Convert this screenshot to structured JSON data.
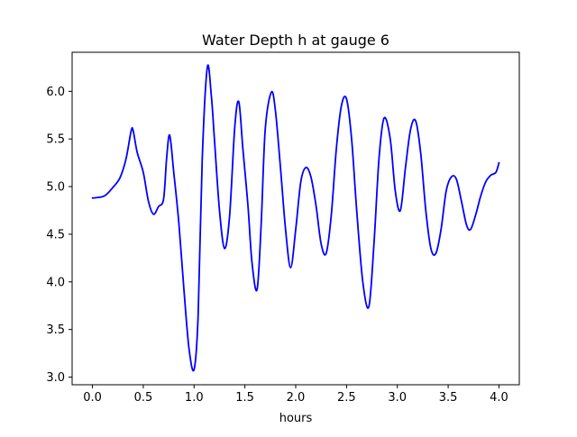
{
  "chart_data": {
    "type": "line",
    "title": "Water Depth h at gauge 6",
    "xlabel": "hours",
    "ylabel": "",
    "xlim": [
      -0.2,
      4.2
    ],
    "ylim": [
      2.92,
      6.41
    ],
    "xticks": [
      0.0,
      0.5,
      1.0,
      1.5,
      2.0,
      2.5,
      3.0,
      3.5,
      4.0
    ],
    "xtick_labels": [
      "0.0",
      "0.5",
      "1.0",
      "1.5",
      "2.0",
      "2.5",
      "3.0",
      "3.5",
      "4.0"
    ],
    "yticks": [
      3.0,
      3.5,
      4.0,
      4.5,
      5.0,
      5.5,
      6.0
    ],
    "ytick_labels": [
      "3.0",
      "3.5",
      "4.0",
      "4.5",
      "5.0",
      "5.5",
      "6.0"
    ],
    "grid": false,
    "legend": "none",
    "series": [
      {
        "name": "",
        "color": "#0000ff",
        "points": [
          [
            0.0,
            4.88
          ],
          [
            0.08,
            4.89
          ],
          [
            0.13,
            4.91
          ],
          [
            0.2,
            4.99
          ],
          [
            0.27,
            5.09
          ],
          [
            0.33,
            5.29
          ],
          [
            0.38,
            5.58
          ],
          [
            0.4,
            5.59
          ],
          [
            0.44,
            5.36
          ],
          [
            0.5,
            5.15
          ],
          [
            0.55,
            4.85
          ],
          [
            0.6,
            4.71
          ],
          [
            0.65,
            4.79
          ],
          [
            0.7,
            4.87
          ],
          [
            0.73,
            5.3
          ],
          [
            0.76,
            5.54
          ],
          [
            0.8,
            5.15
          ],
          [
            0.85,
            4.62
          ],
          [
            0.9,
            3.92
          ],
          [
            0.95,
            3.3
          ],
          [
            1.0,
            3.08
          ],
          [
            1.04,
            3.65
          ],
          [
            1.08,
            5.28
          ],
          [
            1.13,
            6.25
          ],
          [
            1.17,
            5.95
          ],
          [
            1.2,
            5.5
          ],
          [
            1.25,
            4.75
          ],
          [
            1.3,
            4.35
          ],
          [
            1.35,
            4.7
          ],
          [
            1.4,
            5.62
          ],
          [
            1.44,
            5.89
          ],
          [
            1.48,
            5.4
          ],
          [
            1.53,
            4.8
          ],
          [
            1.57,
            4.2
          ],
          [
            1.62,
            3.92
          ],
          [
            1.66,
            4.6
          ],
          [
            1.7,
            5.6
          ],
          [
            1.76,
            5.99
          ],
          [
            1.8,
            5.8
          ],
          [
            1.85,
            5.2
          ],
          [
            1.9,
            4.55
          ],
          [
            1.95,
            4.15
          ],
          [
            2.0,
            4.55
          ],
          [
            2.05,
            5.05
          ],
          [
            2.1,
            5.2
          ],
          [
            2.15,
            5.1
          ],
          [
            2.2,
            4.8
          ],
          [
            2.25,
            4.4
          ],
          [
            2.3,
            4.3
          ],
          [
            2.35,
            4.7
          ],
          [
            2.4,
            5.4
          ],
          [
            2.45,
            5.85
          ],
          [
            2.5,
            5.92
          ],
          [
            2.55,
            5.5
          ],
          [
            2.6,
            4.75
          ],
          [
            2.66,
            4.0
          ],
          [
            2.72,
            3.74
          ],
          [
            2.77,
            4.4
          ],
          [
            2.82,
            5.3
          ],
          [
            2.87,
            5.72
          ],
          [
            2.93,
            5.5
          ],
          [
            2.98,
            4.95
          ],
          [
            3.03,
            4.75
          ],
          [
            3.08,
            5.2
          ],
          [
            3.13,
            5.6
          ],
          [
            3.18,
            5.69
          ],
          [
            3.23,
            5.35
          ],
          [
            3.28,
            4.75
          ],
          [
            3.33,
            4.35
          ],
          [
            3.38,
            4.3
          ],
          [
            3.43,
            4.55
          ],
          [
            3.48,
            4.95
          ],
          [
            3.53,
            5.1
          ],
          [
            3.58,
            5.08
          ],
          [
            3.63,
            4.85
          ],
          [
            3.68,
            4.6
          ],
          [
            3.72,
            4.55
          ],
          [
            3.77,
            4.7
          ],
          [
            3.82,
            4.9
          ],
          [
            3.87,
            5.05
          ],
          [
            3.92,
            5.12
          ],
          [
            3.97,
            5.15
          ],
          [
            4.0,
            5.25
          ]
        ]
      }
    ]
  }
}
